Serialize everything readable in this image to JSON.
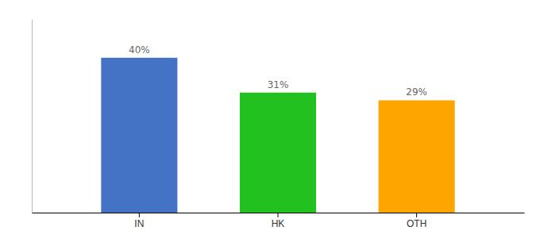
{
  "chart_data": {
    "type": "bar",
    "categories": [
      "IN",
      "HK",
      "OTH"
    ],
    "values": [
      40,
      31,
      29
    ],
    "value_labels": [
      "40%",
      "31%",
      "29%"
    ],
    "colors": [
      "#4472C4",
      "#22C120",
      "#FFA500"
    ],
    "ylim": [
      0,
      50
    ],
    "data_labels": true,
    "tick_labels": "x",
    "grid": false
  }
}
